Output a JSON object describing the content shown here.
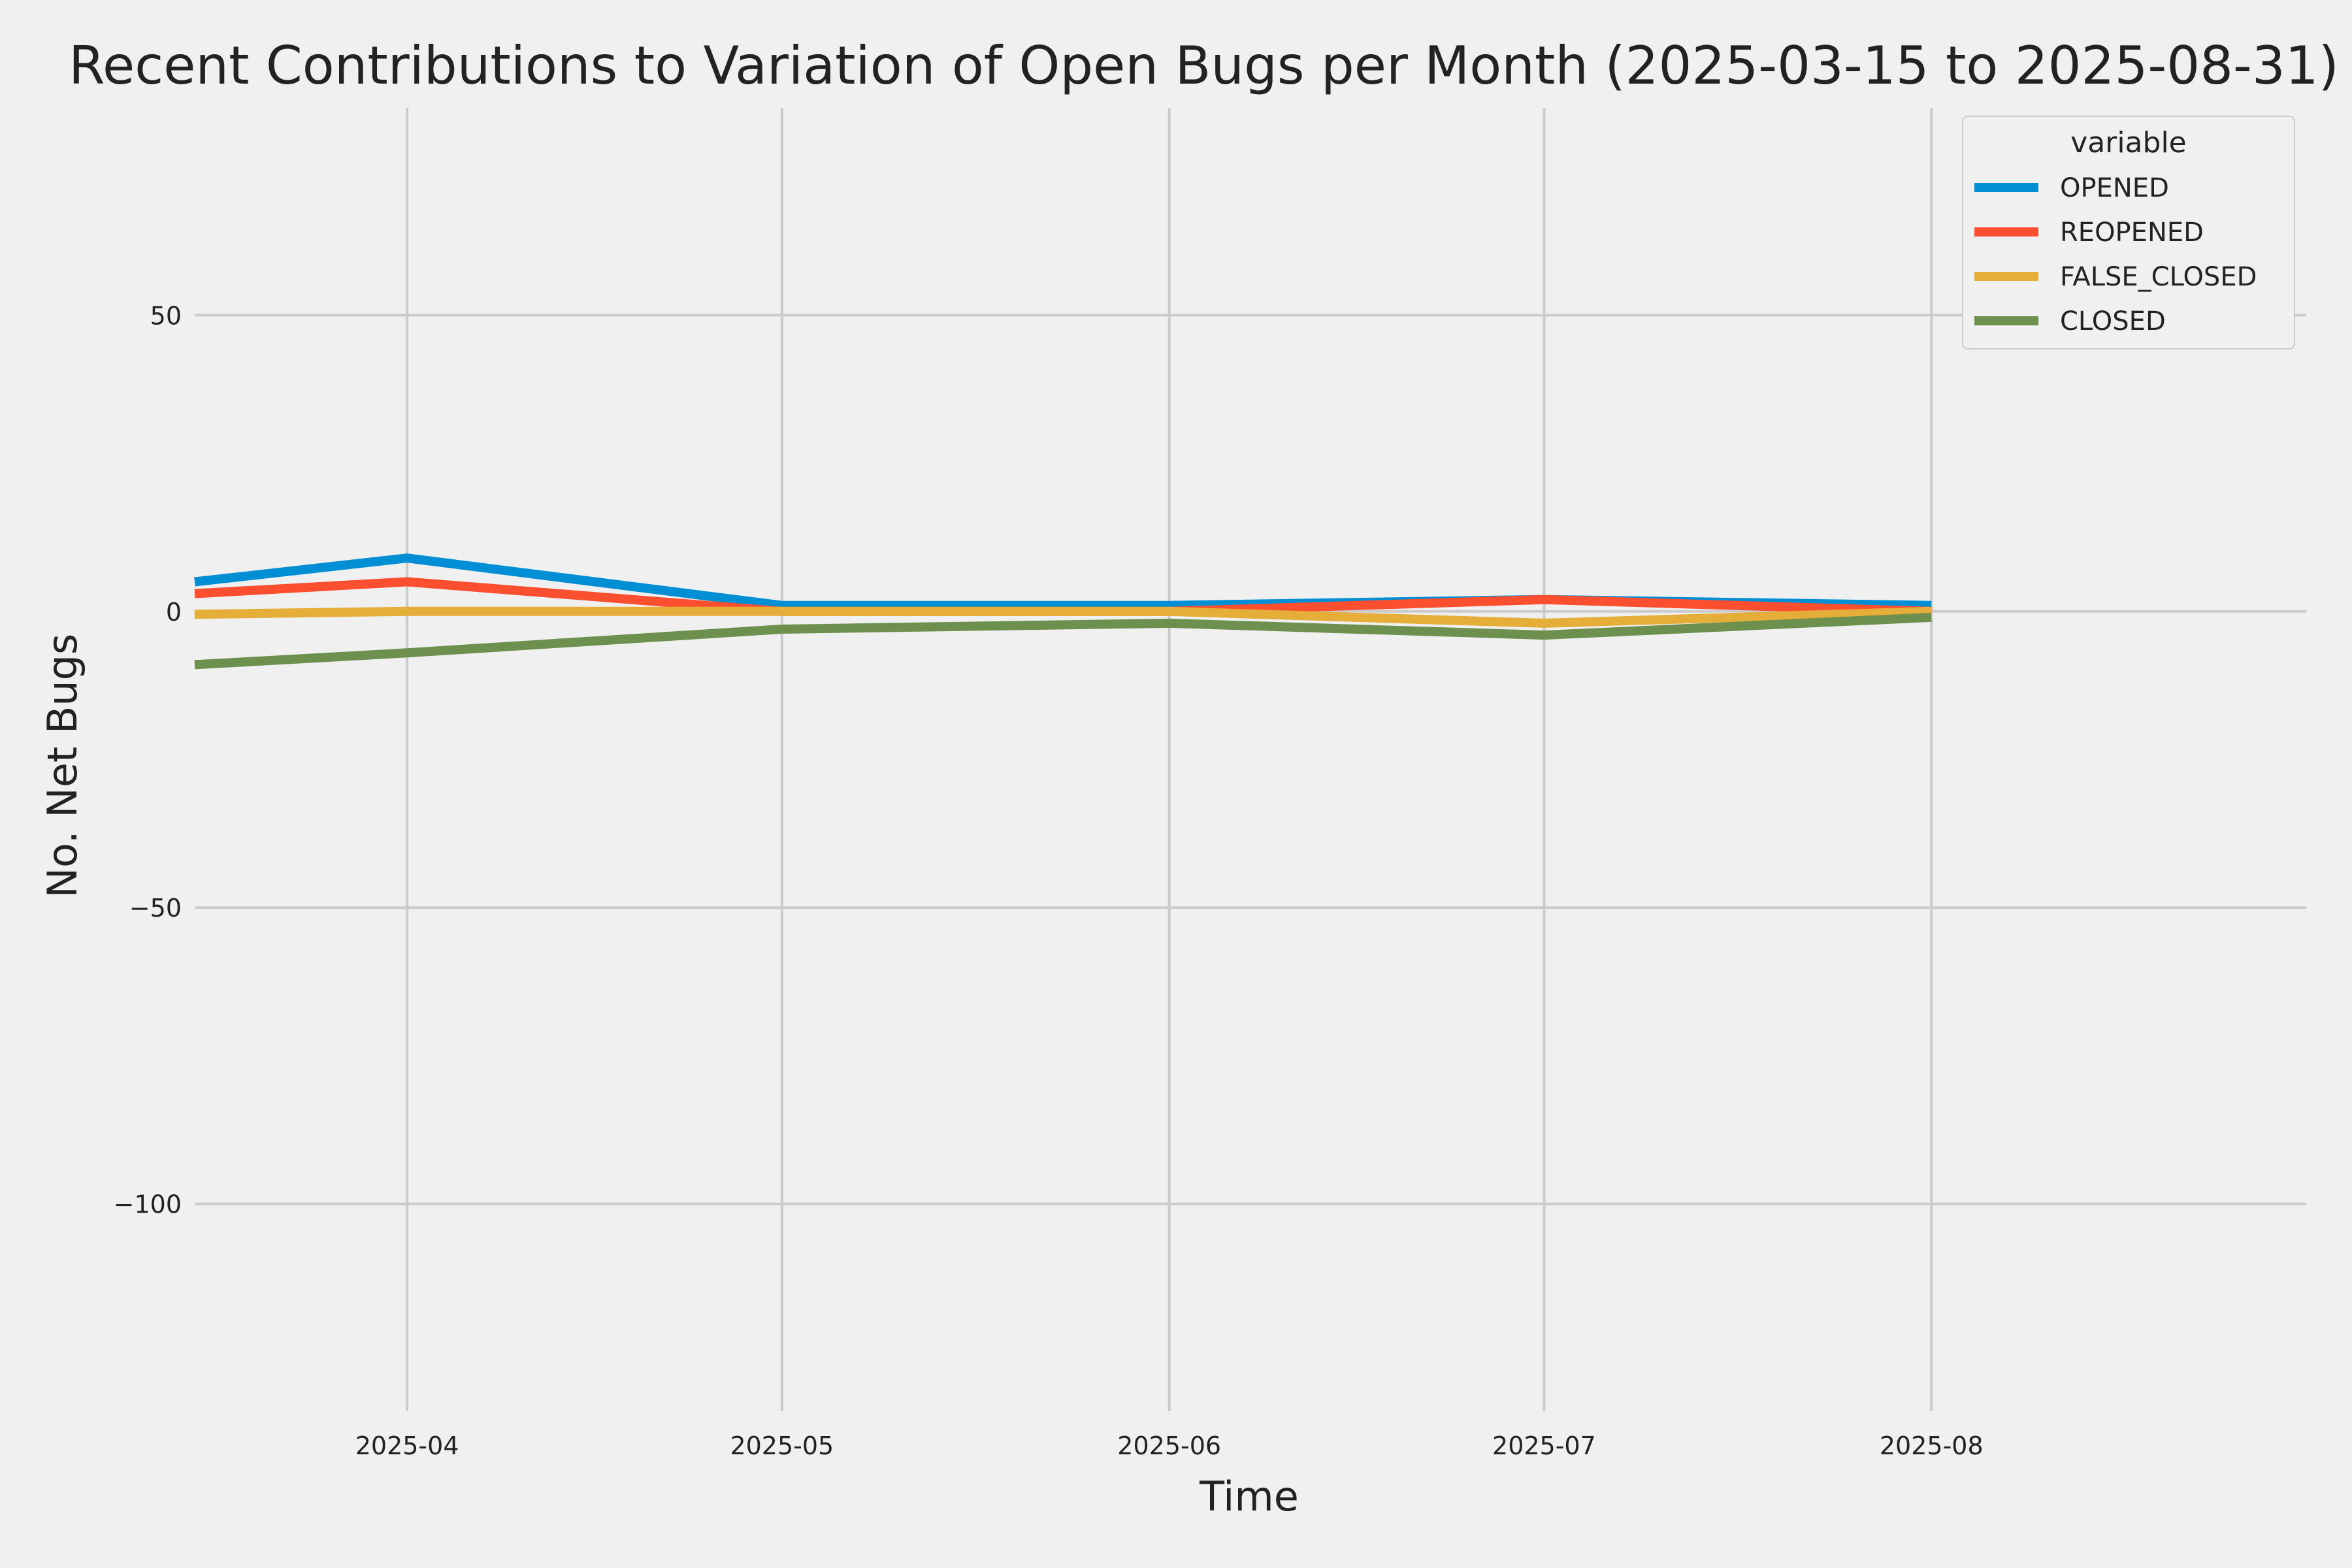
{
  "chart_data": {
    "type": "line",
    "title": "Recent Contributions to Variation of Open Bugs per Month (2025-03-15 to 2025-08-31)",
    "xlabel": "Time",
    "ylabel": "No. Net Bugs",
    "x": [
      "2025-03-15",
      "2025-04-01",
      "2025-05-01",
      "2025-06-01",
      "2025-07-01",
      "2025-08-01"
    ],
    "x_ticks": [
      "2025-04",
      "2025-05",
      "2025-06",
      "2025-07",
      "2025-08"
    ],
    "x_tick_dates": [
      "2025-04-01",
      "2025-05-01",
      "2025-06-01",
      "2025-07-01",
      "2025-08-01"
    ],
    "xlim": [
      "2025-03-15",
      "2025-08-31"
    ],
    "y_ticks": [
      50,
      0,
      -50,
      -100
    ],
    "y_tick_labels": [
      "50",
      "0",
      "−50",
      "−100"
    ],
    "ylim": [
      -135,
      85
    ],
    "grid": true,
    "legend": {
      "title": "variable",
      "position": "top-right"
    },
    "series": [
      {
        "name": "OPENED",
        "color": "#008fd5",
        "values": [
          5,
          9,
          1,
          1,
          2,
          1
        ]
      },
      {
        "name": "REOPENED",
        "color": "#fc4f30",
        "values": [
          3,
          5,
          0,
          0,
          2,
          0
        ]
      },
      {
        "name": "FALSE_CLOSED",
        "color": "#e5ae38",
        "values": [
          -0.5,
          0,
          0,
          0,
          -2,
          0
        ]
      },
      {
        "name": "CLOSED",
        "color": "#6d904f",
        "values": [
          -9,
          -7,
          -3,
          -2,
          -4,
          -1
        ]
      }
    ]
  }
}
